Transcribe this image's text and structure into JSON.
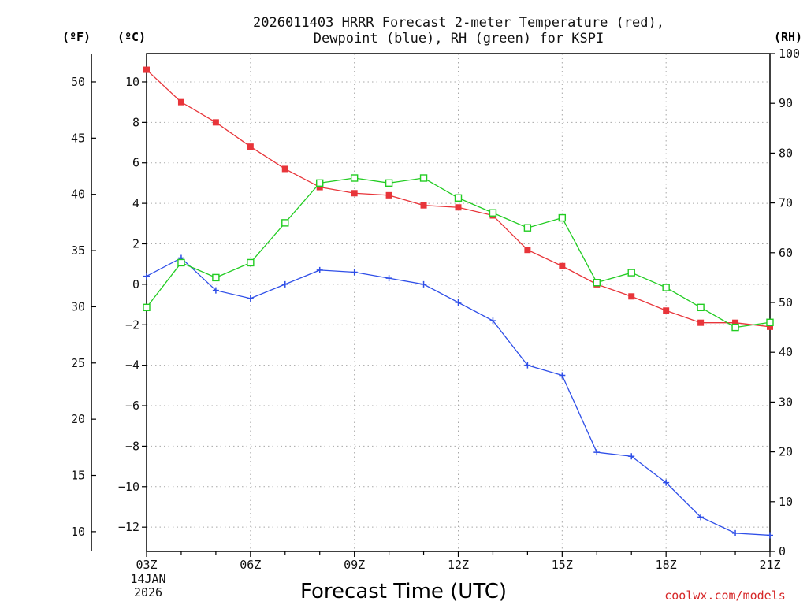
{
  "chart_data": {
    "type": "line",
    "title_line1": "2026011403 HRRR Forecast 2-meter Temperature (red),",
    "title_line2": "Dewpoint (blue), RH (green) for KSPI",
    "xlabel": "Forecast Time (UTC)",
    "credit": "coolwx.com/models",
    "x_start_date": [
      "14JAN",
      "2026"
    ],
    "unit_left_f": "(ºF)",
    "unit_left_c": "(ºC)",
    "unit_right": "(RH)",
    "hours": [
      "03Z",
      "04Z",
      "05Z",
      "06Z",
      "07Z",
      "08Z",
      "09Z",
      "10Z",
      "11Z",
      "12Z",
      "13Z",
      "14Z",
      "15Z",
      "16Z",
      "17Z",
      "18Z",
      "19Z",
      "20Z",
      "21Z"
    ],
    "x_ticks": [
      "03Z",
      "06Z",
      "09Z",
      "12Z",
      "15Z",
      "18Z",
      "21Z"
    ],
    "c_axis": {
      "ylim": [
        -13.2,
        11.4
      ],
      "ticks": [
        "10",
        "8",
        "6",
        "4",
        "2",
        "0",
        "−2",
        "−4",
        "−6",
        "−8",
        "−10",
        "−12"
      ]
    },
    "f_axis": {
      "ticks": [
        "50",
        "45",
        "40",
        "35",
        "30",
        "25",
        "20",
        "15",
        "10"
      ]
    },
    "rh_axis": {
      "ylim": [
        0,
        100
      ],
      "ticks": [
        "100",
        "90",
        "80",
        "70",
        "60",
        "50",
        "40",
        "30",
        "20",
        "10",
        "0"
      ]
    },
    "series": [
      {
        "name": "Temperature",
        "unit": "C",
        "color": "#e8353a",
        "values": [
          10.6,
          9.0,
          8.0,
          6.8,
          5.7,
          4.8,
          4.5,
          4.4,
          3.9,
          3.8,
          3.4,
          1.7,
          0.9,
          0.0,
          -0.6,
          -1.3,
          -1.9,
          -1.9,
          -2.1
        ]
      },
      {
        "name": "Dewpoint",
        "unit": "C",
        "color": "#2f4fe8",
        "values": [
          0.4,
          1.3,
          -0.3,
          -0.7,
          0.0,
          0.7,
          0.6,
          0.3,
          0.0,
          -0.9,
          -1.8,
          -4.0,
          -4.5,
          -8.3,
          -8.5,
          -9.8,
          -11.5,
          -12.3,
          -12.4
        ]
      },
      {
        "name": "RH",
        "unit": "%",
        "color": "#22cc22",
        "values": [
          49,
          58,
          55,
          58,
          66,
          74,
          75,
          74,
          75,
          71,
          68,
          65,
          67,
          54,
          56,
          53,
          49,
          45,
          46
        ]
      }
    ]
  }
}
